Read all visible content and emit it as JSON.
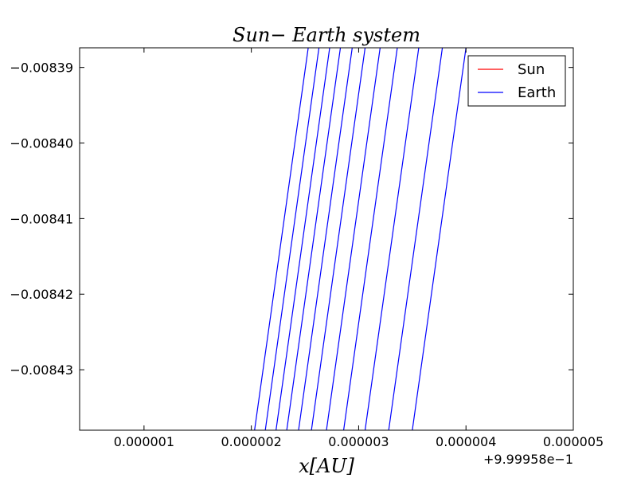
{
  "chart_data": {
    "type": "line",
    "title": "Sun− Earth system",
    "xlabel": "x[AU]",
    "ylabel": "",
    "x_offset_label": "+9.99958e−1",
    "xlim": [
      4e-07,
      5e-06
    ],
    "ylim": [
      -0.008438,
      -0.0083874
    ],
    "x_ticks": [
      1e-06,
      2e-06,
      3e-06,
      4e-06,
      5e-06
    ],
    "x_tick_labels": [
      "0.000001",
      "0.000002",
      "0.000003",
      "0.000004",
      "0.000005"
    ],
    "y_ticks": [
      -0.00839,
      -0.0084,
      -0.00841,
      -0.00842,
      -0.00843
    ],
    "y_tick_labels": [
      "−0.00839",
      "−0.00840",
      "−0.00841",
      "−0.00842",
      "−0.00843"
    ],
    "legend": {
      "placement": "top-right"
    },
    "colors": {
      "Sun": "#ff0000",
      "Earth": "#0000ff"
    },
    "series": [
      {
        "name": "Sun",
        "segments": []
      },
      {
        "name": "Earth",
        "segments": [
          [
            [
              2.03e-06,
              -0.008438
            ],
            [
              2.53e-06,
              -0.0083874
            ]
          ],
          [
            [
              2.13e-06,
              -0.008438
            ],
            [
              2.63e-06,
              -0.0083874
            ]
          ],
          [
            [
              2.23e-06,
              -0.008438
            ],
            [
              2.73e-06,
              -0.0083874
            ]
          ],
          [
            [
              2.33e-06,
              -0.008438
            ],
            [
              2.83e-06,
              -0.0083874
            ]
          ],
          [
            [
              2.44e-06,
              -0.008438
            ],
            [
              2.94e-06,
              -0.0083874
            ]
          ],
          [
            [
              2.56e-06,
              -0.008438
            ],
            [
              3.06e-06,
              -0.0083874
            ]
          ],
          [
            [
              2.7e-06,
              -0.008438
            ],
            [
              3.2e-06,
              -0.0083874
            ]
          ],
          [
            [
              2.86e-06,
              -0.008438
            ],
            [
              3.36e-06,
              -0.0083874
            ]
          ],
          [
            [
              3.06e-06,
              -0.008438
            ],
            [
              3.56e-06,
              -0.0083874
            ]
          ],
          [
            [
              3.28e-06,
              -0.008438
            ],
            [
              3.78e-06,
              -0.0083874
            ]
          ],
          [
            [
              3.5e-06,
              -0.008438
            ],
            [
              4e-06,
              -0.0083874
            ]
          ]
        ]
      }
    ]
  }
}
